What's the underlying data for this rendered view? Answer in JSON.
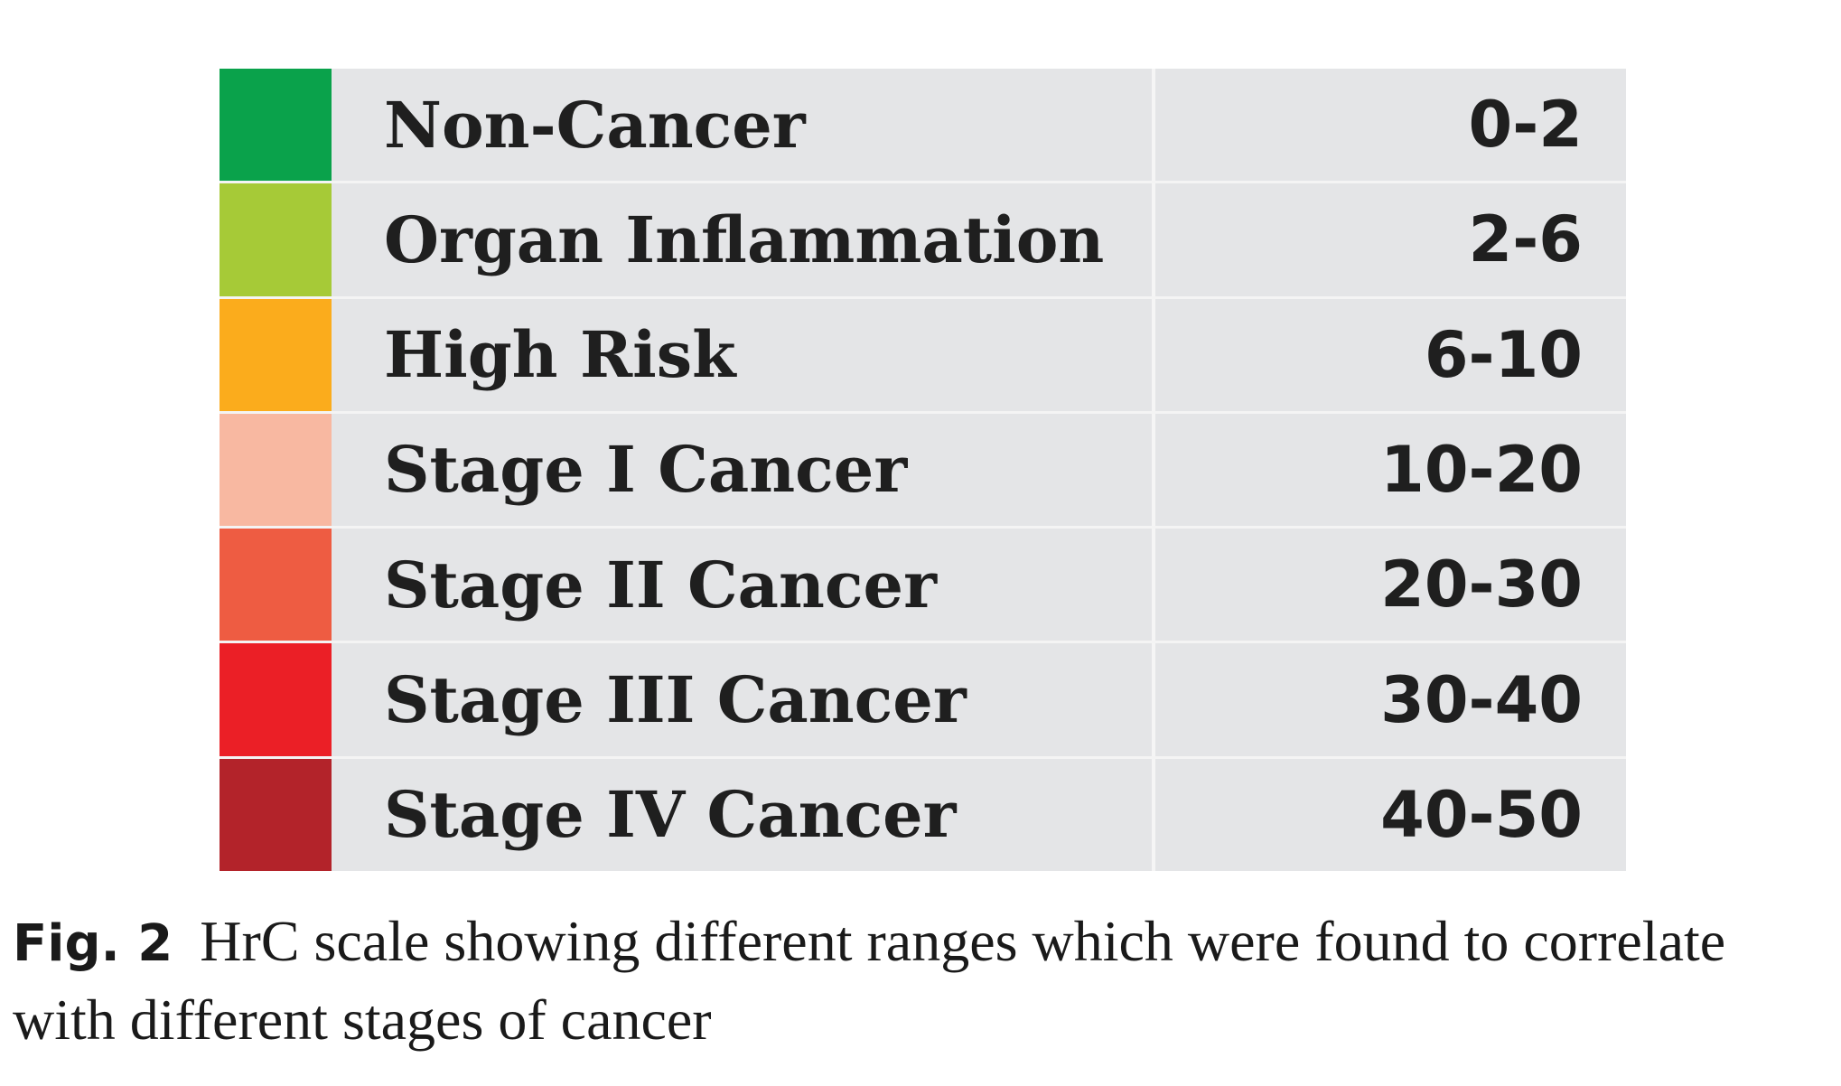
{
  "scale": {
    "rows": [
      {
        "label": "Non-Cancer",
        "range": "0-2",
        "color": "#0aa24b"
      },
      {
        "label": "Organ Inflammation",
        "range": "2-6",
        "color": "#a6ca37"
      },
      {
        "label": "High Risk",
        "range": "6-10",
        "color": "#fbac1c"
      },
      {
        "label": "Stage I Cancer",
        "range": "10-20",
        "color": "#f8b8a1"
      },
      {
        "label": "Stage II Cancer",
        "range": "20-30",
        "color": "#ee5c42"
      },
      {
        "label": "Stage III Cancer",
        "range": "30-40",
        "color": "#eb1f26"
      },
      {
        "label": "Stage IV Cancer",
        "range": "40-50",
        "color": "#b3232a"
      }
    ]
  },
  "caption": {
    "figure_label": "Fig. 2",
    "text": "HrC scale showing different ranges which were found to correlate with different stages of cancer"
  }
}
